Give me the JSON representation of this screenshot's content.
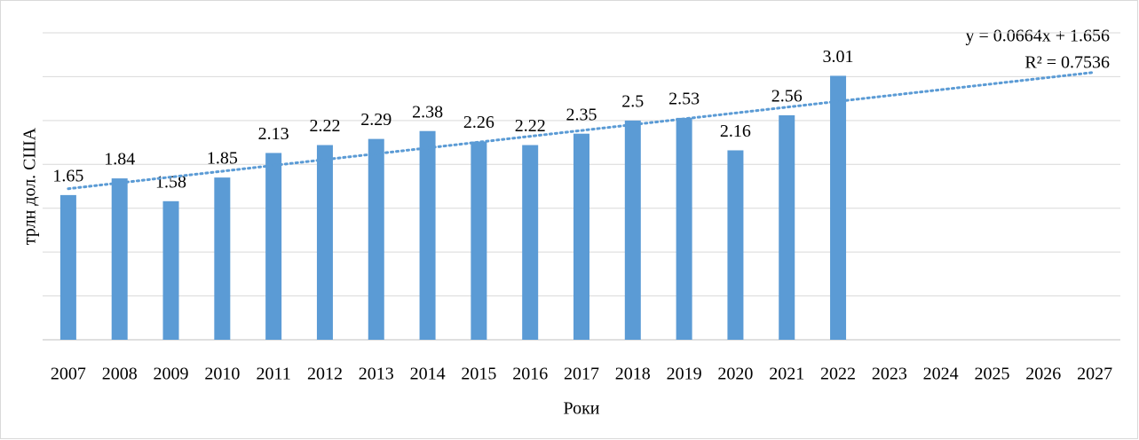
{
  "chart_data": {
    "type": "bar",
    "y_axis_label": "трлн дол. США",
    "x_axis_label": "Роки",
    "categories": [
      "2007",
      "2008",
      "2009",
      "2010",
      "2011",
      "2012",
      "2013",
      "2014",
      "2015",
      "2016",
      "2017",
      "2018",
      "2019",
      "2020",
      "2021",
      "2022",
      "2023",
      "2024",
      "2025",
      "2026",
      "2027"
    ],
    "values": [
      1.65,
      1.84,
      1.58,
      1.85,
      2.13,
      2.22,
      2.29,
      2.38,
      2.26,
      2.22,
      2.35,
      2.5,
      2.53,
      2.16,
      2.56,
      3.01,
      null,
      null,
      null,
      null,
      null
    ],
    "color": "#5b9bd5",
    "ylim": [
      0,
      3.5
    ],
    "yticks": [
      0,
      0.5,
      1,
      1.5,
      2,
      2.5,
      3,
      3.5
    ],
    "grid": true,
    "show_ytick_labels": false,
    "trendline": {
      "type": "linear",
      "slope": 0.0664,
      "intercept": 1.656,
      "color": "#5b9bd5",
      "equation": "y = 0.0664x + 1.656",
      "r_squared": "R² = 0.7536"
    }
  }
}
